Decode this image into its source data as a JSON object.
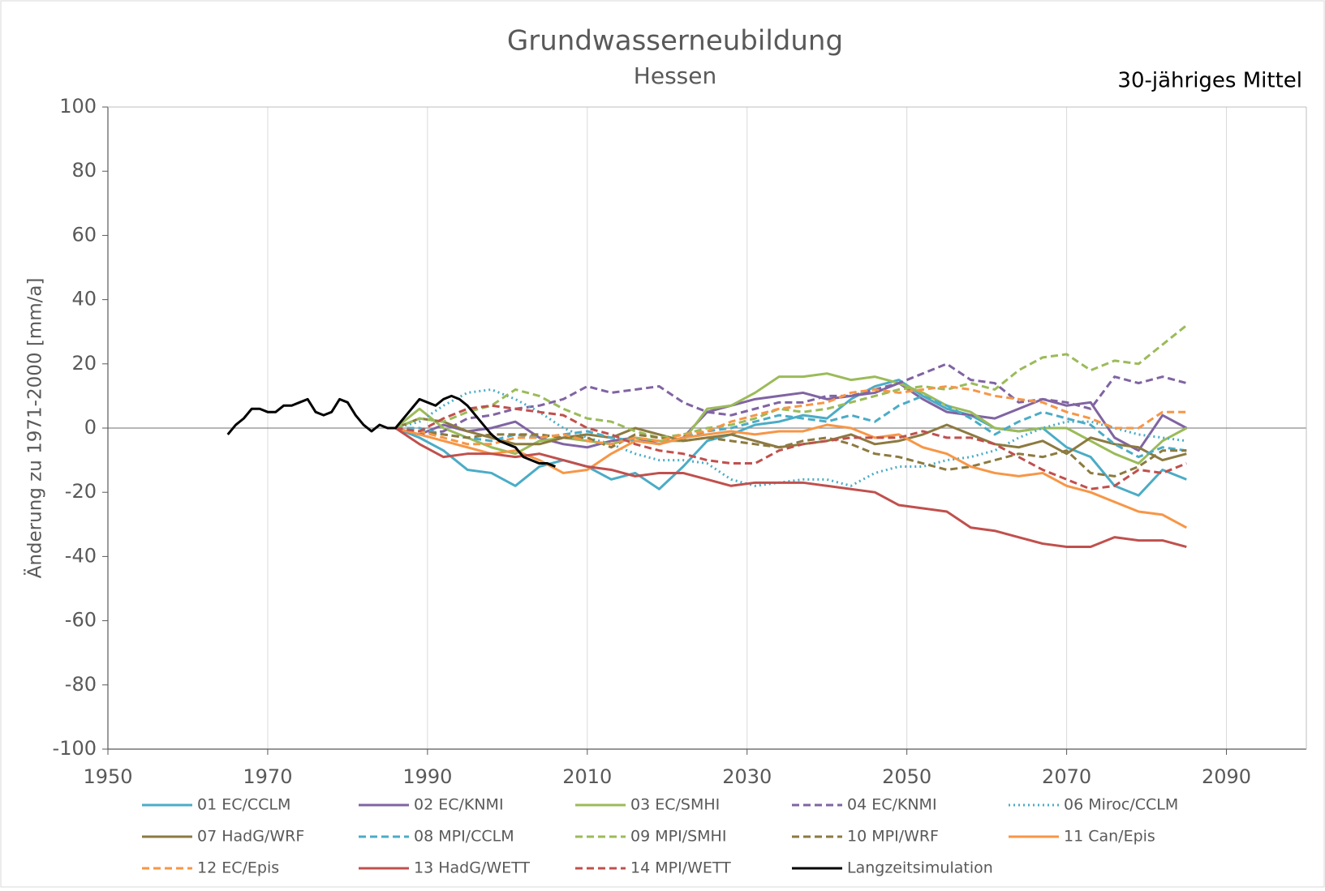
{
  "chart_data": {
    "type": "line",
    "title": "Grundwasserneubildung",
    "subtitle": "Hessen",
    "annotation": "30-jähriges Mittel",
    "y_label": "Änderung zu 1971-2000 [mm/a]",
    "xlim": [
      1950,
      2100
    ],
    "xticks": [
      1950,
      1970,
      1990,
      2010,
      2030,
      2050,
      2070,
      2090
    ],
    "ylim": [
      -100,
      100
    ],
    "yticks": [
      -100,
      -80,
      -60,
      -40,
      -20,
      0,
      20,
      40,
      60,
      80,
      100
    ],
    "grid": "x",
    "zero_line": true,
    "x": [
      1986,
      1989,
      1992,
      1995,
      1998,
      2001,
      2004,
      2007,
      2010,
      2013,
      2016,
      2019,
      2022,
      2025,
      2028,
      2031,
      2034,
      2037,
      2040,
      2043,
      2046,
      2049,
      2052,
      2055,
      2058,
      2061,
      2064,
      2067,
      2070,
      2073,
      2076,
      2079,
      2082,
      2085
    ],
    "series": [
      {
        "name": "01 EC/CCLM",
        "color": "#4bacc6",
        "dash": "solid",
        "values": [
          0,
          -3,
          -7,
          -13,
          -14,
          -18,
          -12,
          -10,
          -12,
          -16,
          -14,
          -19,
          -12,
          -4,
          -2,
          1,
          2,
          4,
          3,
          9,
          13,
          15,
          10,
          6,
          4,
          0,
          -1,
          0,
          -6,
          -9,
          -18,
          -21,
          -13,
          -16
        ]
      },
      {
        "name": "02 EC/KNMI",
        "color": "#8064a2",
        "dash": "solid",
        "values": [
          0,
          -2,
          1,
          -1,
          0,
          2,
          -3,
          -5,
          -6,
          -4,
          -3,
          -5,
          -3,
          5,
          7,
          9,
          10,
          11,
          9,
          10,
          11,
          14,
          9,
          5,
          4,
          3,
          6,
          9,
          7,
          8,
          -3,
          -7,
          4,
          0
        ]
      },
      {
        "name": "03 EC/SMHI",
        "color": "#9bbb59",
        "dash": "solid",
        "values": [
          0,
          6,
          0,
          -3,
          -6,
          -8,
          -4,
          -3,
          -4,
          -5,
          -3,
          -4,
          -4,
          6,
          7,
          11,
          16,
          16,
          17,
          15,
          16,
          14,
          11,
          7,
          5,
          0,
          -1,
          0,
          0,
          -4,
          -8,
          -11,
          -4,
          0
        ]
      },
      {
        "name": "04 EC/KNMI",
        "color": "#8064a2",
        "dash": "dashed",
        "values": [
          0,
          -2,
          -1,
          3,
          4,
          6,
          7,
          9,
          13,
          11,
          12,
          13,
          8,
          5,
          4,
          6,
          8,
          8,
          10,
          10,
          12,
          14,
          17,
          20,
          15,
          14,
          8,
          9,
          8,
          6,
          16,
          14,
          16,
          14
        ]
      },
      {
        "name": "06 Miroc/CCLM",
        "color": "#4bacc6",
        "dash": "dotted",
        "values": [
          0,
          2,
          7,
          11,
          12,
          9,
          5,
          0,
          -3,
          -5,
          -8,
          -10,
          -10,
          -11,
          -16,
          -18,
          -17,
          -16,
          -16,
          -18,
          -14,
          -12,
          -12,
          -10,
          -9,
          -7,
          -3,
          0,
          2,
          2,
          0,
          -2,
          -3,
          -4
        ]
      },
      {
        "name": "07 HadG/WRF",
        "color": "#8c7a40",
        "dash": "solid",
        "values": [
          0,
          3,
          2,
          -1,
          -3,
          -5,
          -5,
          -3,
          -2,
          -3,
          0,
          -2,
          -4,
          -3,
          -2,
          -4,
          -6,
          -5,
          -4,
          -2,
          -5,
          -4,
          -2,
          1,
          -2,
          -5,
          -6,
          -4,
          -8,
          -3,
          -5,
          -6,
          -10,
          -8
        ]
      },
      {
        "name": "08 MPI/CCLM",
        "color": "#4bacc6",
        "dash": "dashed",
        "values": [
          0,
          0,
          -2,
          -3,
          -4,
          -2,
          -3,
          -2,
          -1,
          -3,
          -4,
          -5,
          -3,
          -1,
          0,
          2,
          4,
          3,
          2,
          4,
          2,
          7,
          10,
          7,
          3,
          -2,
          2,
          5,
          3,
          1,
          -5,
          -9,
          -6,
          -7
        ]
      },
      {
        "name": "09 MPI/SMHI",
        "color": "#9bbb59",
        "dash": "dashed",
        "values": [
          0,
          3,
          2,
          5,
          7,
          12,
          10,
          6,
          3,
          2,
          -1,
          -3,
          -2,
          0,
          1,
          3,
          6,
          5,
          6,
          8,
          10,
          12,
          13,
          12,
          14,
          12,
          18,
          22,
          23,
          18,
          21,
          20,
          26,
          32
        ]
      },
      {
        "name": "10 MPI/WRF",
        "color": "#8c7a40",
        "dash": "dashed",
        "values": [
          0,
          -1,
          -2,
          -3,
          -2,
          -2,
          -2,
          -3,
          -3,
          -6,
          -2,
          -3,
          -4,
          -3,
          -4,
          -5,
          -6,
          -4,
          -3,
          -5,
          -8,
          -9,
          -11,
          -13,
          -12,
          -10,
          -8,
          -9,
          -7,
          -14,
          -15,
          -12,
          -7,
          -7
        ]
      },
      {
        "name": "11 Can/Epis",
        "color": "#f79646",
        "dash": "solid",
        "values": [
          0,
          -2,
          -4,
          -6,
          -8,
          -7,
          -10,
          -14,
          -13,
          -8,
          -4,
          -5,
          -3,
          -2,
          -1,
          -2,
          -1,
          -1,
          1,
          0,
          -3,
          -2,
          -6,
          -8,
          -12,
          -14,
          -15,
          -14,
          -18,
          -20,
          -23,
          -26,
          -27,
          -31
        ]
      },
      {
        "name": "12 EC/Epis",
        "color": "#f79646",
        "dash": "dashed",
        "values": [
          0,
          -1,
          -3,
          -5,
          -5,
          -3,
          -3,
          -2,
          -4,
          -5,
          -3,
          -4,
          -2,
          -1,
          2,
          4,
          6,
          7,
          8,
          11,
          12,
          11,
          12,
          13,
          12,
          10,
          9,
          8,
          5,
          3,
          0,
          0,
          5,
          5
        ]
      },
      {
        "name": "13 HadG/WETT",
        "color": "#c0504d",
        "dash": "solid",
        "values": [
          0,
          -5,
          -9,
          -8,
          -8,
          -9,
          -8,
          -10,
          -12,
          -13,
          -15,
          -14,
          -14,
          -16,
          -18,
          -17,
          -17,
          -17,
          -18,
          -19,
          -20,
          -24,
          -25,
          -26,
          -31,
          -32,
          -34,
          -36,
          -37,
          -37,
          -34,
          -35,
          -35,
          -37
        ]
      },
      {
        "name": "14 MPI/WETT",
        "color": "#c0504d",
        "dash": "dashed",
        "values": [
          0,
          -1,
          3,
          6,
          7,
          6,
          5,
          4,
          0,
          -2,
          -5,
          -7,
          -8,
          -10,
          -11,
          -11,
          -7,
          -5,
          -4,
          -3,
          -3,
          -3,
          -1,
          -3,
          -3,
          -5,
          -9,
          -13,
          -16,
          -19,
          -18,
          -13,
          -14,
          -11
        ]
      },
      {
        "name": "Langzeitsimulation",
        "color": "#000000",
        "dash": "solid",
        "x": [
          1965,
          1966,
          1967,
          1968,
          1969,
          1970,
          1971,
          1972,
          1973,
          1974,
          1975,
          1976,
          1977,
          1978,
          1979,
          1980,
          1981,
          1982,
          1983,
          1984,
          1985,
          1986,
          1987,
          1988,
          1989,
          1990,
          1991,
          1992,
          1993,
          1994,
          1995,
          1996,
          1997,
          1998,
          1999,
          2000,
          2001,
          2002,
          2003,
          2004,
          2005,
          2006
        ],
        "values": [
          -2,
          1,
          3,
          6,
          6,
          5,
          5,
          7,
          7,
          8,
          9,
          5,
          4,
          5,
          9,
          8,
          4,
          1,
          -1,
          1,
          0,
          0,
          3,
          6,
          9,
          8,
          7,
          9,
          10,
          9,
          7,
          4,
          1,
          -2,
          -4,
          -5,
          -6,
          -9,
          -10,
          -11,
          -11,
          -12
        ]
      }
    ]
  }
}
